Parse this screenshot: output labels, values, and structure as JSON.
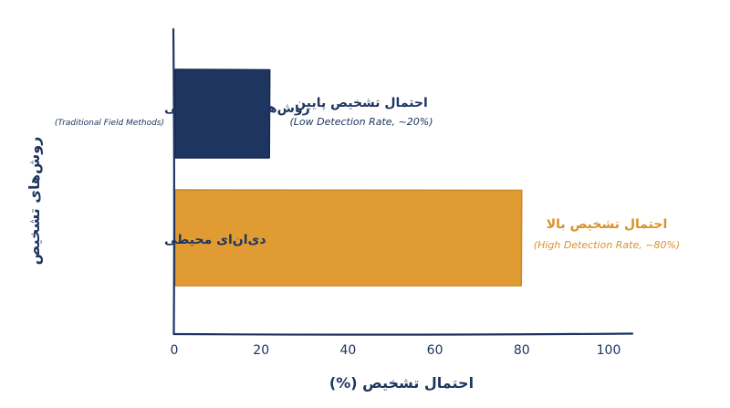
{
  "chart_data": {
    "type": "bar",
    "orientation": "horizontal",
    "title": "",
    "xlabel": "احتمال تشخیص (%)",
    "ylabel": "روش‌های تشخیص",
    "xlim": [
      0,
      100
    ],
    "xticks": [
      0,
      20,
      40,
      60,
      80,
      100
    ],
    "grid": false,
    "categories": [
      {
        "label": "روش‌های میدانی سنتی",
        "sublabel": "(Traditional Field Methods)"
      },
      {
        "label": "دی‌ان‌ای محیطی",
        "sublabel": ""
      }
    ],
    "values": [
      22,
      80
    ],
    "colors": [
      "#1e3560",
      "#e09b32"
    ],
    "annotations": [
      {
        "title": "احتمال تشخیص پایین",
        "subtitle": "(Low Detection Rate, ~20%)",
        "color": "#1e3560"
      },
      {
        "title": "احتمال تشخیص بالا",
        "subtitle": "(High Detection Rate, ~80%)",
        "color": "#d9912a"
      }
    ]
  }
}
